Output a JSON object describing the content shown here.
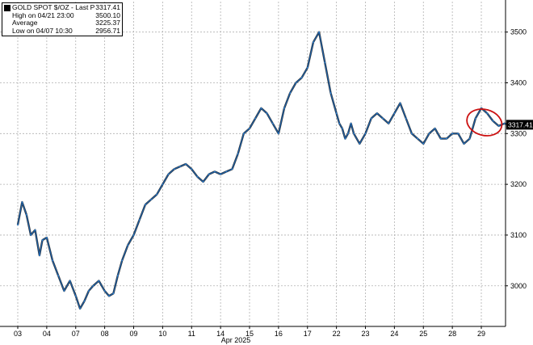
{
  "chart_data": {
    "type": "line",
    "title": "",
    "xlabel": "Apr 2025",
    "ylabel": "",
    "ylim": [
      2920,
      3560
    ],
    "yticks": [
      3000,
      3100,
      3200,
      3300,
      3400,
      3500
    ],
    "categories": [
      "03",
      "04",
      "07",
      "08",
      "09",
      "10",
      "11",
      "14",
      "15",
      "16",
      "17",
      "22",
      "23",
      "24",
      "25",
      "28",
      "29"
    ],
    "last_price_label": "3317.41",
    "legend": [
      {
        "label": "GOLD SPOT $/OZ - Last Price",
        "value": "3317.41"
      },
      {
        "label": "High on 04/21 23:00",
        "value": "3500.10"
      },
      {
        "label": "Average",
        "value": "3225.37"
      },
      {
        "label": "Low on 04/07 10:30",
        "value": "2956.71"
      }
    ],
    "series": [
      {
        "name": "GOLD SPOT $/OZ",
        "x": [
          0,
          0.15,
          0.3,
          0.45,
          0.6,
          0.75,
          0.85,
          1,
          1.2,
          1.4,
          1.6,
          1.8,
          2,
          2.15,
          2.3,
          2.45,
          2.6,
          2.8,
          3,
          3.15,
          3.3,
          3.45,
          3.6,
          3.8,
          4,
          4.2,
          4.4,
          4.6,
          4.8,
          5,
          5.2,
          5.4,
          5.6,
          5.8,
          6,
          6.2,
          6.4,
          6.6,
          6.8,
          7,
          7.2,
          7.4,
          7.6,
          7.8,
          8,
          8.2,
          8.4,
          8.6,
          8.8,
          9,
          9.2,
          9.4,
          9.6,
          9.8,
          10,
          10.2,
          10.4,
          10.6,
          10.8,
          11,
          11.1,
          11.2,
          11.3,
          11.4,
          11.5,
          11.6,
          11.8,
          12,
          12.2,
          12.4,
          12.6,
          12.8,
          13,
          13.2,
          13.4,
          13.6,
          13.8,
          14,
          14.2,
          14.4,
          14.6,
          14.8,
          15,
          15.2,
          15.4,
          15.6,
          15.8,
          16,
          16.2,
          16.4,
          16.6,
          16.8,
          16.95
        ],
        "y": [
          3120,
          3165,
          3140,
          3100,
          3110,
          3060,
          3090,
          3095,
          3050,
          3020,
          2990,
          3010,
          2980,
          2955,
          2970,
          2990,
          3000,
          3010,
          2990,
          2980,
          2985,
          3020,
          3050,
          3080,
          3100,
          3130,
          3160,
          3170,
          3180,
          3200,
          3220,
          3230,
          3235,
          3240,
          3230,
          3215,
          3205,
          3220,
          3225,
          3220,
          3225,
          3230,
          3260,
          3300,
          3310,
          3330,
          3350,
          3340,
          3320,
          3300,
          3350,
          3380,
          3400,
          3410,
          3430,
          3480,
          3500,
          3440,
          3380,
          3340,
          3320,
          3310,
          3290,
          3300,
          3320,
          3300,
          3280,
          3300,
          3330,
          3340,
          3330,
          3320,
          3340,
          3360,
          3330,
          3300,
          3290,
          3280,
          3300,
          3310,
          3290,
          3290,
          3300,
          3300,
          3280,
          3290,
          3330,
          3350,
          3340,
          3325,
          3315,
          3320,
          3317.41
        ]
      }
    ],
    "annotation": "red ellipse around latest prices",
    "colors": {
      "line": "#1a5fa8",
      "highlight": "#2e86de",
      "annotation": "#cc1111",
      "grid": "#b0b0b0"
    }
  }
}
